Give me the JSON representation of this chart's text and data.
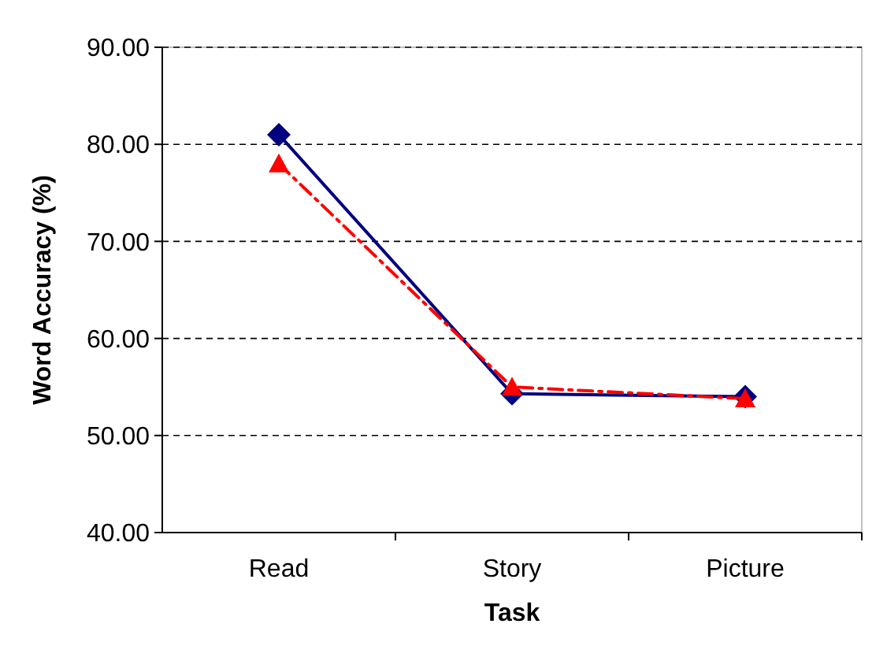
{
  "chart_data": {
    "type": "line",
    "xlabel": "Task",
    "ylabel": "Word Accuracy (%)",
    "categories": [
      "Read",
      "Story",
      "Picture"
    ],
    "ylim": [
      40,
      90
    ],
    "yticks": [
      {
        "value": 40,
        "label": "40.00"
      },
      {
        "value": 50,
        "label": "50.00"
      },
      {
        "value": 60,
        "label": "60.00"
      },
      {
        "value": 70,
        "label": "70.00"
      },
      {
        "value": 80,
        "label": "80.00"
      },
      {
        "value": 90,
        "label": "90.00"
      }
    ],
    "grid": "y",
    "series": [
      {
        "color": "#000080",
        "values": [
          81,
          54.3,
          54
        ],
        "marker": "diamond",
        "line_style": "solid"
      },
      {
        "color": "#ff0000",
        "values": [
          78,
          55,
          53.8
        ],
        "marker": "triangle",
        "line_style": "dashed"
      }
    ]
  }
}
